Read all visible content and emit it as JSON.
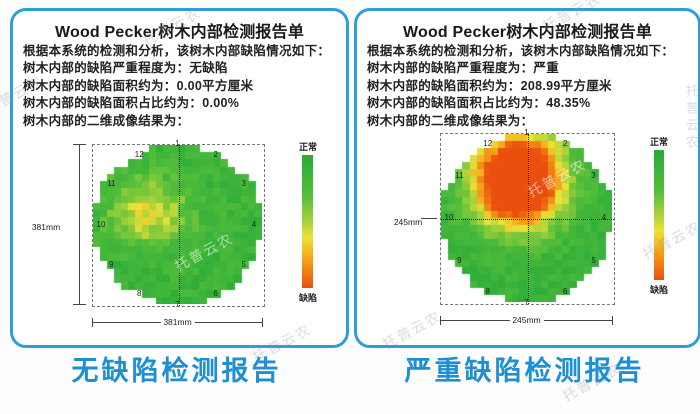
{
  "watermark": {
    "text": "托普云农"
  },
  "colors": {
    "panel_border": "#2b9fd6",
    "caption_blue": "#1e8fd2",
    "title_text": "#1a1a1a",
    "body_text": "#222222"
  },
  "panels": [
    {
      "title": "Wood Pecker树木内部检测报告单",
      "intro": "根据本系统的检测和分析，该树木内部缺陷情况如下：",
      "fields": [
        {
          "label": "树木内部的缺陷严重程度为：",
          "value": "无缺陷"
        },
        {
          "label": "树木内部的缺陷面积约为：",
          "value": "0.00平方厘米"
        },
        {
          "label": "树木内部的缺陷面积占比约为：",
          "value": "0.00%"
        },
        {
          "label": "树木内部的二维成像结果为：",
          "value": ""
        }
      ],
      "caption": "无缺陷检测报告"
    },
    {
      "title": "Wood Pecker树木内部检测报告单",
      "intro": "根据本系统的检测和分析，该树木内部缺陷情况如下：",
      "fields": [
        {
          "label": "树木内部的缺陷严重程度为：",
          "value": "严重"
        },
        {
          "label": "树木内部的缺陷面积约为：",
          "value": "208.99平方厘米"
        },
        {
          "label": "树木内部的缺陷面积占比约为：",
          "value": "48.35%"
        },
        {
          "label": "树木内部的二维成像结果为：",
          "value": ""
        }
      ],
      "caption": "严重缺陷检测报告"
    }
  ],
  "chart_data": [
    {
      "type": "heatmap",
      "severity": "无缺陷",
      "defect_area_cm2": 0,
      "defect_area_ratio_pct": 0,
      "diameter_mm": 381,
      "width_label": "381mm",
      "height_label": "381mm",
      "sensors": [
        "1",
        "2",
        "3",
        "4",
        "5",
        "6",
        "7",
        "8",
        "9",
        "10",
        "11",
        "12"
      ],
      "colorbar": {
        "top_label": "正常",
        "bottom_label": "缺陷"
      },
      "colormap": [
        [
          0,
          "#28ab3a"
        ],
        [
          0.3,
          "#52bd3a"
        ],
        [
          0.5,
          "#a8d23a"
        ],
        [
          0.62,
          "#eae23a"
        ],
        [
          0.74,
          "#f6b31f"
        ],
        [
          0.86,
          "#f28413"
        ],
        [
          1,
          "#e9500e"
        ]
      ],
      "grid": {
        "cols": 24,
        "rows": 22
      },
      "field": {
        "base": 0.15,
        "noise": 0.11,
        "blobs": [
          {
            "cx": -0.34,
            "cy": -0.15,
            "sx": 0.34,
            "sy": 0.3,
            "amp": 0.45
          }
        ]
      },
      "crosshair": {
        "v": true,
        "h": false
      }
    },
    {
      "type": "heatmap",
      "severity": "严重",
      "defect_area_cm2": 208.99,
      "defect_area_ratio_pct": 48.35,
      "diameter_mm": 245,
      "width_label": "245mm",
      "height_label": "245mm",
      "sensors": [
        "1",
        "2",
        "3",
        "4",
        "5",
        "6",
        "7",
        "8",
        "9",
        "10",
        "11",
        "12"
      ],
      "colorbar": {
        "top_label": "正常",
        "bottom_label": "缺陷"
      },
      "colormap": [
        [
          0,
          "#28ab3a"
        ],
        [
          0.3,
          "#52bd3a"
        ],
        [
          0.5,
          "#a8d23a"
        ],
        [
          0.62,
          "#eae23a"
        ],
        [
          0.74,
          "#f6b31f"
        ],
        [
          0.86,
          "#f28413"
        ],
        [
          1,
          "#e9500e"
        ]
      ],
      "grid": {
        "cols": 24,
        "rows": 24
      },
      "field": {
        "base": 0.13,
        "noise": 0.09,
        "blobs": [
          {
            "cx": -0.1,
            "cy": -0.45,
            "sx": 0.36,
            "sy": 0.38,
            "amp": 1.5
          }
        ]
      },
      "crosshair": {
        "v": true,
        "h": true
      }
    }
  ]
}
